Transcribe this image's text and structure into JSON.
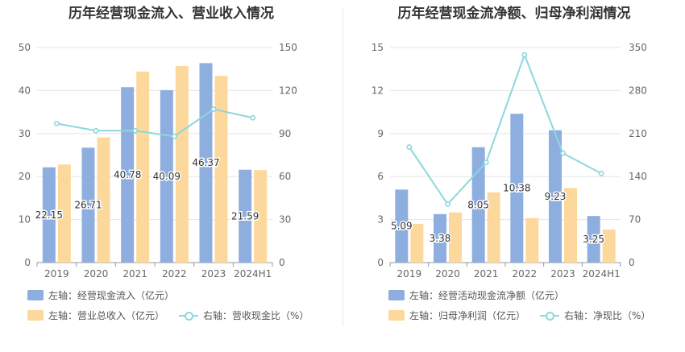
{
  "colors": {
    "bar1": "#8eaee0",
    "bar2": "#fdd89c",
    "line": "#8dd7dd",
    "grid": "#e6e6e6",
    "axis": "#999999"
  },
  "chart_data": [
    {
      "type": "bar",
      "title": "历年经营现金流入、营业收入情况",
      "categories": [
        "2019",
        "2020",
        "2021",
        "2022",
        "2023",
        "2024H1"
      ],
      "ylim_left": [
        0,
        50
      ],
      "yticks_left": [
        "0",
        "10",
        "20",
        "30",
        "40",
        "50"
      ],
      "ylim_right": [
        0,
        150
      ],
      "yticks_right": [
        "0",
        "30",
        "60",
        "90",
        "120",
        "150"
      ],
      "series": [
        {
          "name": "左轴：经营现金流入（亿元）",
          "axis": "left",
          "kind": "bar",
          "values": [
            22.15,
            26.71,
            40.78,
            40.09,
            46.37,
            21.59
          ],
          "labels": [
            "22.15",
            "26.71",
            "40.78",
            "40.09",
            "46.37",
            "21.59"
          ]
        },
        {
          "name": "左轴：营业总收入（亿元）",
          "axis": "left",
          "kind": "bar",
          "values": [
            22.8,
            29.1,
            44.4,
            45.7,
            43.4,
            21.5
          ]
        },
        {
          "name": "右轴：营收现金比（%）",
          "axis": "right",
          "kind": "line",
          "values": [
            97,
            92,
            92,
            88,
            107,
            101
          ]
        }
      ],
      "legend": {
        "bar1": "左轴：经营现金流入（亿元）",
        "bar2": "左轴：营业总收入（亿元）",
        "line": "右轴：营收现金比（%）"
      }
    },
    {
      "type": "bar",
      "title": "历年经营现金流净额、归母净利润情况",
      "categories": [
        "2019",
        "2020",
        "2021",
        "2022",
        "2023",
        "2024H1"
      ],
      "ylim_left": [
        0,
        15
      ],
      "yticks_left": [
        "0",
        "3",
        "6",
        "9",
        "12",
        "15"
      ],
      "ylim_right": [
        0,
        350
      ],
      "yticks_right": [
        "0",
        "70",
        "140",
        "210",
        "280",
        "350"
      ],
      "series": [
        {
          "name": "左轴：经营活动现金流净额（亿元）",
          "axis": "left",
          "kind": "bar",
          "values": [
            5.09,
            3.38,
            8.05,
            10.38,
            9.23,
            3.25
          ],
          "labels": [
            "5.09",
            "3.38",
            "8.05",
            "10.38",
            "9.23",
            "3.25"
          ]
        },
        {
          "name": "左轴：归母净利润（亿元）",
          "axis": "left",
          "kind": "bar",
          "values": [
            2.7,
            3.5,
            4.9,
            3.1,
            5.2,
            2.3
          ]
        },
        {
          "name": "右轴：净现比（%）",
          "axis": "right",
          "kind": "line",
          "values": [
            188,
            95,
            163,
            338,
            178,
            145
          ]
        }
      ],
      "legend": {
        "bar1": "左轴：经营活动现金流净额（亿元）",
        "bar2": "左轴：归母净利润（亿元）",
        "line": "右轴：净现比（%）"
      }
    }
  ]
}
